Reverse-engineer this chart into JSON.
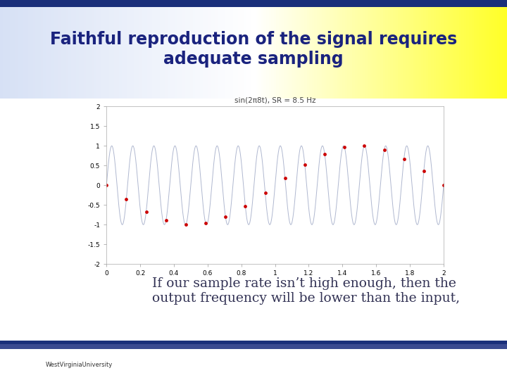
{
  "title_main": "Faithful reproduction of the signal requires\nadequate sampling",
  "plot_title": "sin(2π8t), SR = 8.5 Hz",
  "signal_freq": 8,
  "sample_rate": 8.5,
  "t_start": 0,
  "t_end": 2,
  "ylim": [
    -2,
    2
  ],
  "xlim": [
    0,
    2
  ],
  "xticks": [
    0,
    0.2,
    0.4,
    0.6,
    0.8,
    1.0,
    1.2,
    1.4,
    1.6,
    1.8,
    2.0
  ],
  "yticks": [
    -2,
    -1.5,
    -1,
    -0.5,
    0,
    0.5,
    1,
    1.5,
    2
  ],
  "line_color": "#b0b8d0",
  "dot_color": "#cc0000",
  "header_text_color": "#1a237e",
  "subtitle_text": "If our sample rate isn’t high enough, then the\noutput frequency will be lower than the input,",
  "subtitle_color": "#333355",
  "bottom_bar_color": "#1a3070",
  "bottom_accent_color": "#c8a000"
}
